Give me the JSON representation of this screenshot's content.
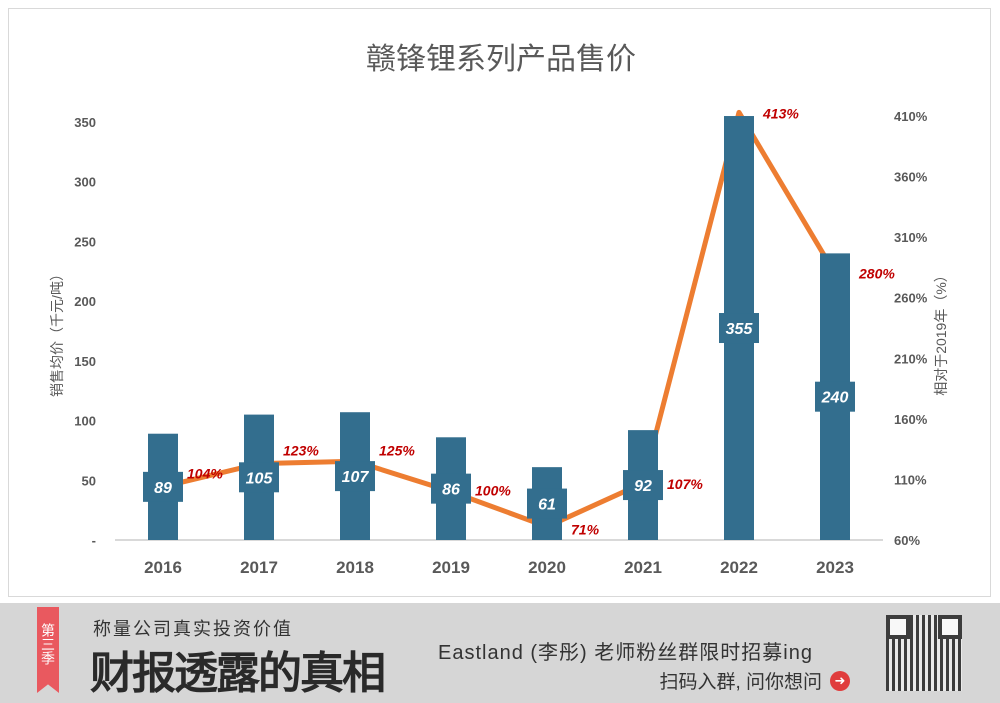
{
  "chart_data": {
    "type": "bar+line",
    "title": "赣锋锂系列产品售价",
    "categories": [
      "2016",
      "2017",
      "2018",
      "2019",
      "2020",
      "2021",
      "2022",
      "2023"
    ],
    "series": [
      {
        "type": "bar",
        "axis": "left",
        "values": [
          89,
          105,
          107,
          86,
          61,
          92,
          355,
          240
        ],
        "labels": [
          "89",
          "105",
          "107",
          "86",
          "61",
          "92",
          "355",
          "240"
        ]
      },
      {
        "type": "line",
        "axis": "right",
        "values": [
          104,
          123,
          125,
          100,
          71,
          107,
          413,
          280
        ],
        "labels": [
          "104%",
          "123%",
          "125%",
          "100%",
          "71%",
          "107%",
          "413%",
          "280%"
        ]
      }
    ],
    "ylabel": "销售均价（千元/吨）",
    "y2label": "相对于2019年（%）",
    "ylim": [
      0,
      350
    ],
    "yticks": [
      "-",
      "50",
      "100",
      "150",
      "200",
      "250",
      "300",
      "350"
    ],
    "y2lim": [
      60,
      410
    ],
    "y2ticks": [
      "60%",
      "110%",
      "160%",
      "210%",
      "260%",
      "310%",
      "360%",
      "410%"
    ],
    "grid": false,
    "colors": {
      "bar": "#336e8e",
      "line": "#ed7d31",
      "line_label": "#c00000"
    }
  },
  "footer": {
    "ribbon": "第三季",
    "subtitle": "称量公司真实投资价值",
    "title": "财报透露的真相",
    "promo": "Eastland (李彤) 老师粉丝群限时招募ing",
    "cta": "扫码入群, 问你想问"
  }
}
